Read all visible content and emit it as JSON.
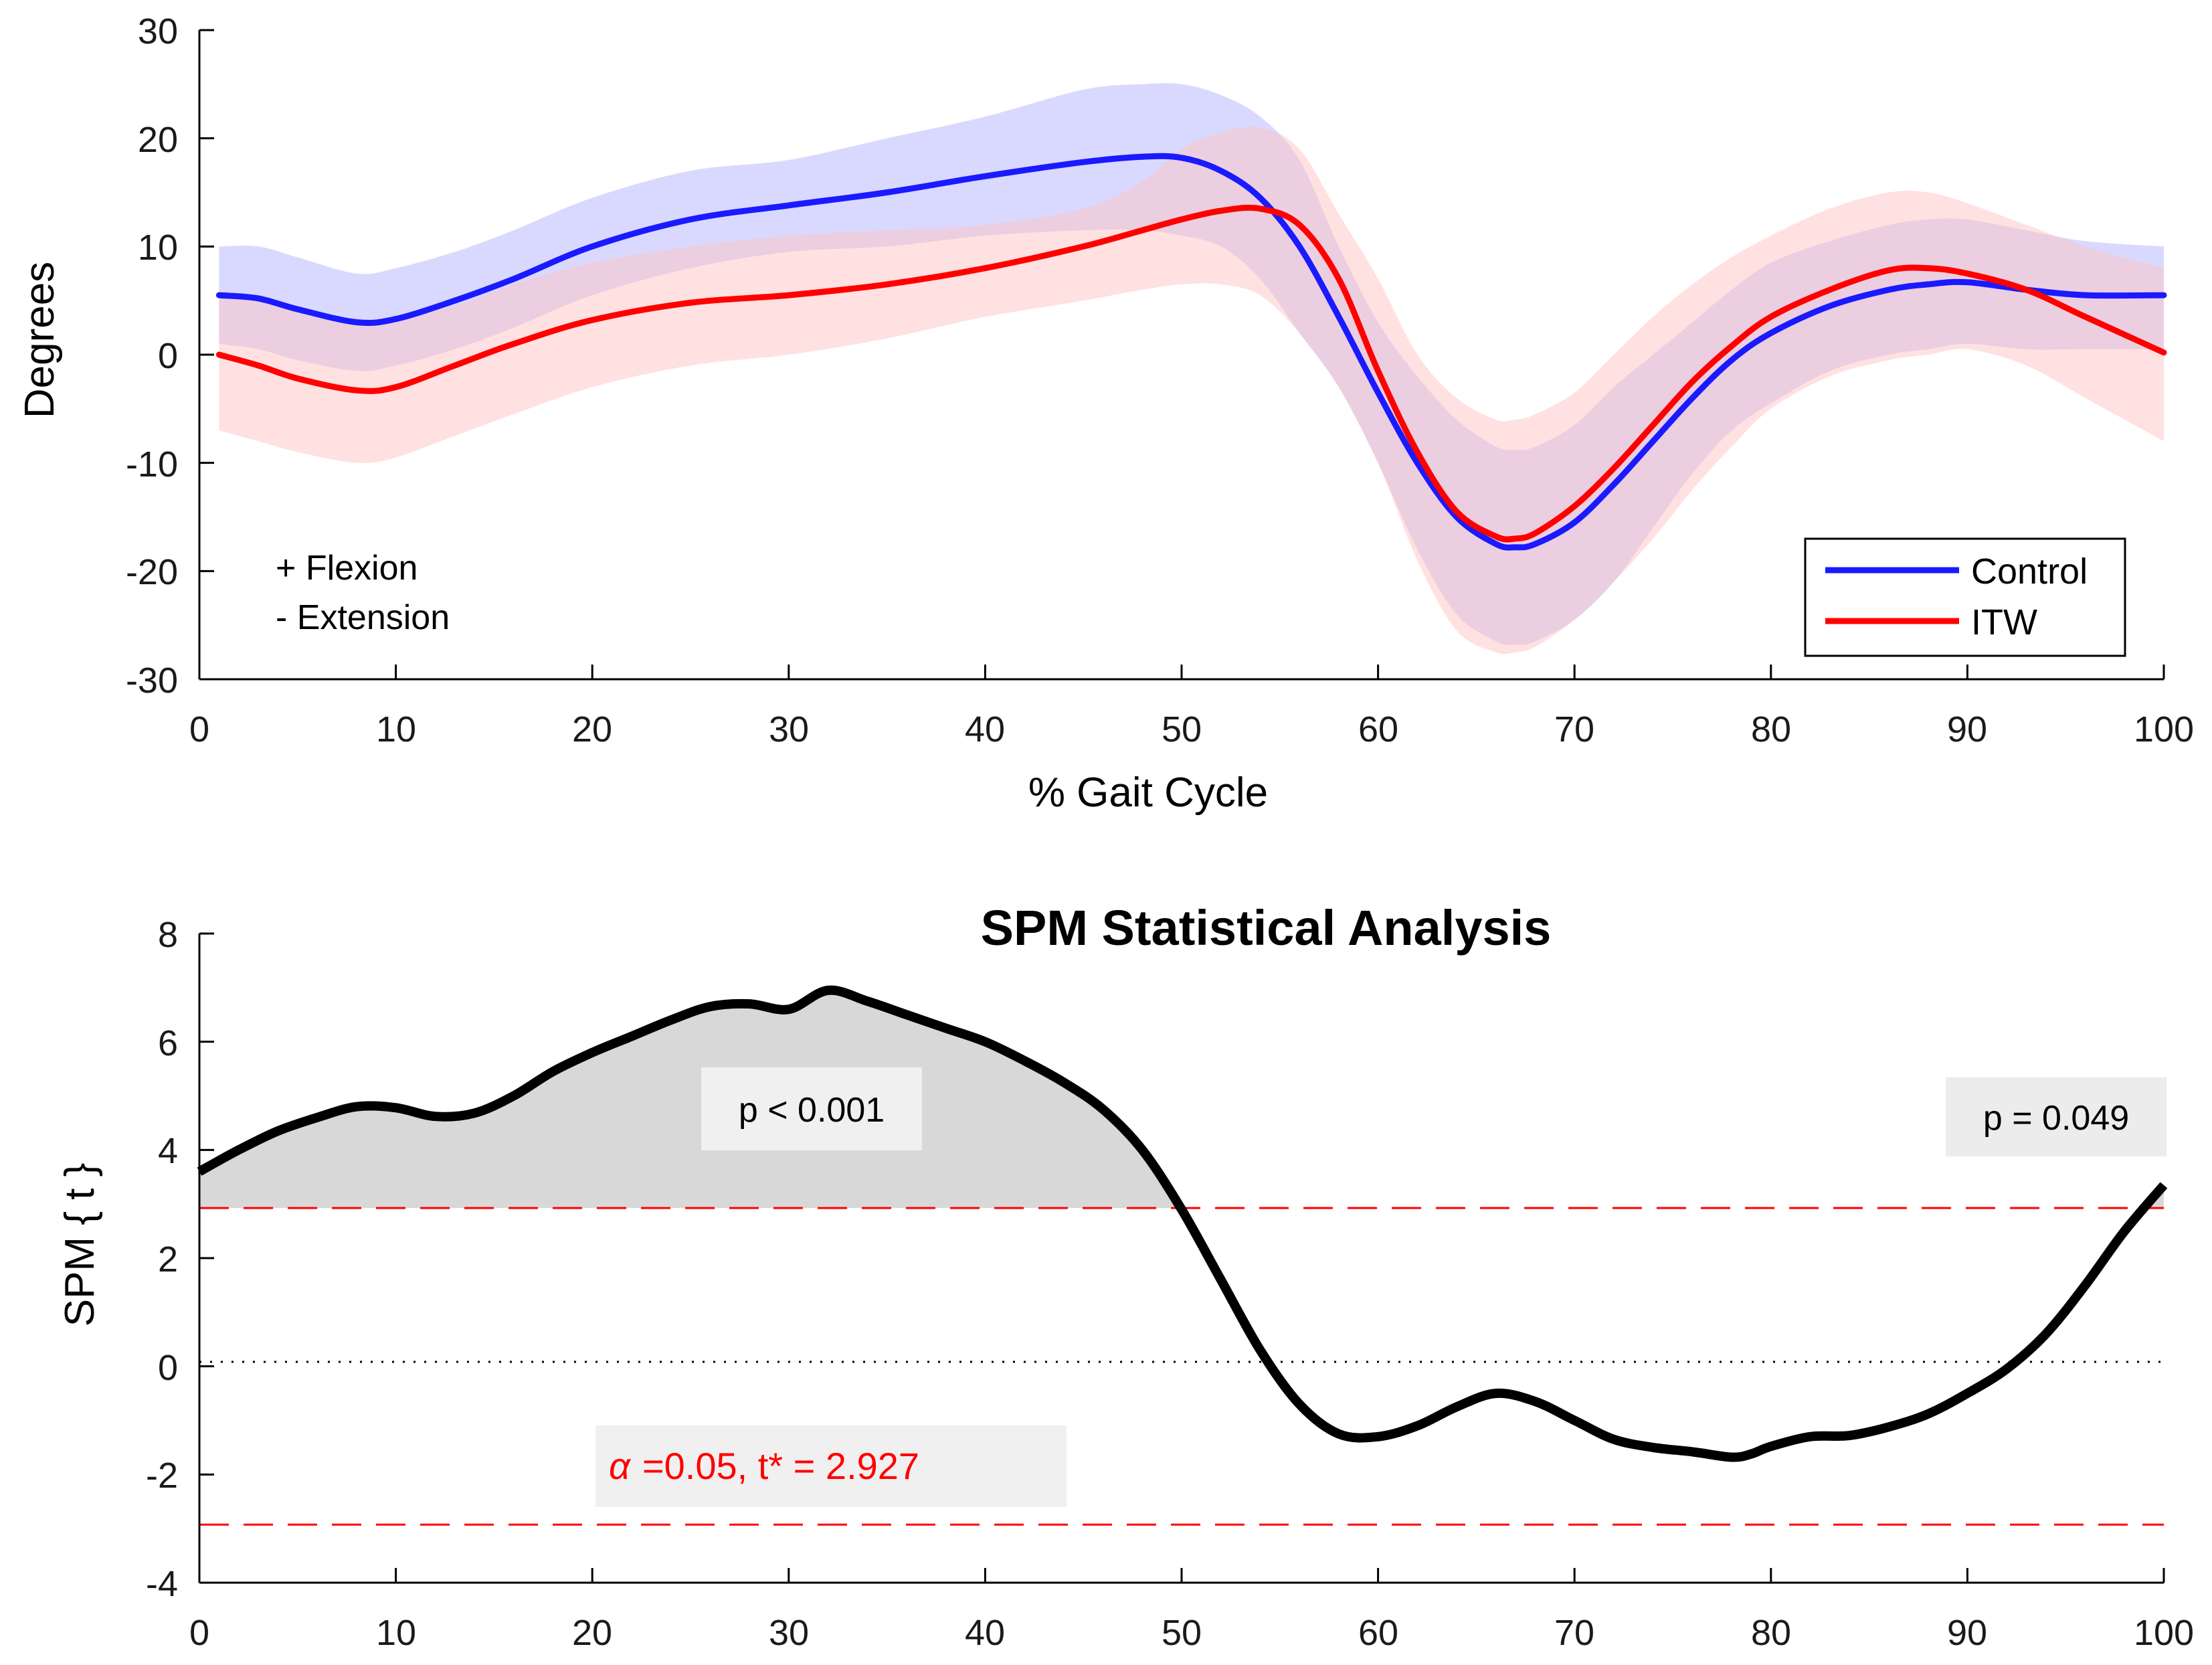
{
  "chart_data": [
    {
      "type": "line",
      "title": "",
      "xlabel": "% Gait Cycle",
      "ylabel": "Degrees",
      "xlim": [
        0,
        100
      ],
      "ylim": [
        -30,
        30
      ],
      "xticks": [
        "0",
        "10",
        "20",
        "30",
        "40",
        "50",
        "60",
        "70",
        "80",
        "90",
        "100"
      ],
      "yticks": [
        "30",
        "20",
        "10",
        "0",
        "-10",
        "-20",
        "-30"
      ],
      "annotations": [
        "+ Flexion",
        "- Extension"
      ],
      "legend_position": "bottom-right",
      "series": [
        {
          "name": "Control",
          "color": "#1a1aff",
          "band_color": "#b9b9ff",
          "x": [
            1,
            3,
            5,
            8,
            10,
            13,
            16,
            20,
            25,
            30,
            35,
            40,
            45,
            48,
            50,
            52,
            54,
            56,
            58,
            60,
            62,
            64,
            66,
            67,
            68,
            70,
            72,
            74,
            76,
            78,
            80,
            83,
            86,
            88,
            90,
            93,
            96,
            100
          ],
          "mean": [
            5.5,
            5.2,
            4.2,
            3.0,
            3.3,
            5.0,
            7.0,
            10.0,
            12.5,
            13.8,
            15.0,
            16.5,
            17.8,
            18.3,
            18.2,
            17.0,
            14.5,
            10.0,
            3.5,
            -3.5,
            -10.0,
            -15.0,
            -17.5,
            -17.8,
            -17.5,
            -15.5,
            -12.0,
            -8.0,
            -4.0,
            -0.5,
            2.0,
            4.5,
            6.0,
            6.5,
            6.7,
            6.0,
            5.5,
            5.5
          ],
          "upper": [
            10.0,
            10.0,
            9.0,
            7.5,
            8.0,
            9.5,
            11.5,
            14.5,
            17.0,
            18.0,
            20.0,
            22.0,
            24.5,
            25.0,
            25.0,
            24.0,
            22.0,
            18.0,
            10.0,
            3.0,
            -2.0,
            -6.0,
            -8.5,
            -8.8,
            -8.5,
            -6.5,
            -3.0,
            0.0,
            3.0,
            6.0,
            8.5,
            10.5,
            12.0,
            12.5,
            12.5,
            11.5,
            10.5,
            10.0
          ],
          "lower": [
            1.0,
            0.5,
            -0.5,
            -1.5,
            -1.0,
            0.5,
            2.5,
            5.5,
            8.0,
            9.5,
            10.0,
            11.0,
            11.5,
            11.5,
            11.0,
            10.0,
            7.0,
            2.0,
            -3.0,
            -10.0,
            -18.0,
            -24.0,
            -26.5,
            -26.8,
            -26.5,
            -24.5,
            -21.0,
            -16.0,
            -11.0,
            -7.0,
            -4.5,
            -1.5,
            0.0,
            0.5,
            1.0,
            0.5,
            0.5,
            0.5
          ]
        },
        {
          "name": "ITW",
          "color": "#ff0000",
          "band_color": "#ffc4c4",
          "x": [
            1,
            3,
            5,
            8,
            10,
            13,
            16,
            20,
            25,
            30,
            35,
            40,
            45,
            48,
            50,
            52,
            54,
            56,
            58,
            60,
            62,
            64,
            66,
            67,
            68,
            70,
            72,
            74,
            76,
            78,
            80,
            83,
            86,
            88,
            90,
            93,
            96,
            100
          ],
          "mean": [
            0.0,
            -1.0,
            -2.2,
            -3.3,
            -3.0,
            -1.0,
            1.0,
            3.2,
            4.8,
            5.5,
            6.5,
            8.0,
            10.0,
            11.5,
            12.5,
            13.3,
            13.5,
            12.0,
            7.0,
            -1.5,
            -9.0,
            -14.5,
            -16.8,
            -17.0,
            -16.5,
            -14.0,
            -10.5,
            -6.5,
            -2.5,
            0.8,
            3.5,
            6.0,
            7.8,
            8.0,
            7.5,
            6.0,
            3.5,
            0.2
          ],
          "upper": [
            6.0,
            5.0,
            4.0,
            3.0,
            3.5,
            4.5,
            6.5,
            8.5,
            10.0,
            11.0,
            11.5,
            12.0,
            13.5,
            16.0,
            19.0,
            20.5,
            21.0,
            19.0,
            13.0,
            7.0,
            0.0,
            -4.0,
            -6.0,
            -6.0,
            -5.5,
            -3.5,
            0.0,
            3.5,
            6.5,
            9.0,
            11.0,
            13.5,
            15.0,
            15.0,
            14.0,
            12.0,
            10.0,
            8.0
          ],
          "lower": [
            -7.0,
            -8.0,
            -9.0,
            -10.0,
            -9.5,
            -7.5,
            -5.5,
            -3.0,
            -1.0,
            0.0,
            1.5,
            3.5,
            5.0,
            6.0,
            6.5,
            6.5,
            5.5,
            2.0,
            -3.0,
            -10.0,
            -19.0,
            -25.5,
            -27.5,
            -27.5,
            -27.0,
            -24.5,
            -21.0,
            -17.0,
            -12.5,
            -8.5,
            -5.0,
            -2.0,
            -0.5,
            0.0,
            0.5,
            -1.0,
            -4.0,
            -8.0
          ]
        }
      ]
    },
    {
      "type": "line",
      "title": "SPM Statistical Analysis",
      "xlabel": "",
      "ylabel": "SPM { t }",
      "xlim": [
        0,
        100
      ],
      "ylim": [
        -4,
        8
      ],
      "xticks": [
        "0",
        "10",
        "20",
        "30",
        "40",
        "50",
        "60",
        "70",
        "80",
        "90",
        "100"
      ],
      "yticks": [
        "8",
        "6",
        "4",
        "2",
        "0",
        "-2",
        "-4"
      ],
      "threshold": 2.927,
      "alpha": 0.05,
      "cluster_labels": [
        "p < 0.001",
        "p = 0.049"
      ],
      "threshold_prefix": "α",
      "threshold_label": "=0.05,     t* = 2.927",
      "series": [
        {
          "name": "SPM{t}",
          "color": "#000000",
          "x": [
            0,
            2,
            4,
            6,
            8,
            10,
            12,
            14,
            16,
            18,
            20,
            22,
            24,
            26,
            28,
            30,
            32,
            34,
            36,
            38,
            40,
            42,
            44,
            46,
            48,
            50,
            52,
            54,
            56,
            58,
            60,
            62,
            64,
            66,
            68,
            70,
            72,
            74,
            76,
            78,
            79,
            80,
            82,
            84,
            86,
            88,
            90,
            92,
            94,
            96,
            98,
            100
          ],
          "y": [
            3.6,
            4.0,
            4.35,
            4.6,
            4.8,
            4.78,
            4.62,
            4.68,
            5.0,
            5.45,
            5.8,
            6.1,
            6.4,
            6.65,
            6.7,
            6.6,
            6.95,
            6.75,
            6.5,
            6.25,
            6.0,
            5.65,
            5.25,
            4.75,
            4.0,
            2.9,
            1.6,
            0.3,
            -0.7,
            -1.25,
            -1.3,
            -1.1,
            -0.75,
            -0.5,
            -0.65,
            -1.0,
            -1.35,
            -1.5,
            -1.58,
            -1.68,
            -1.62,
            -1.48,
            -1.3,
            -1.28,
            -1.12,
            -0.88,
            -0.5,
            -0.05,
            0.6,
            1.5,
            2.5,
            3.35
          ]
        }
      ]
    }
  ]
}
